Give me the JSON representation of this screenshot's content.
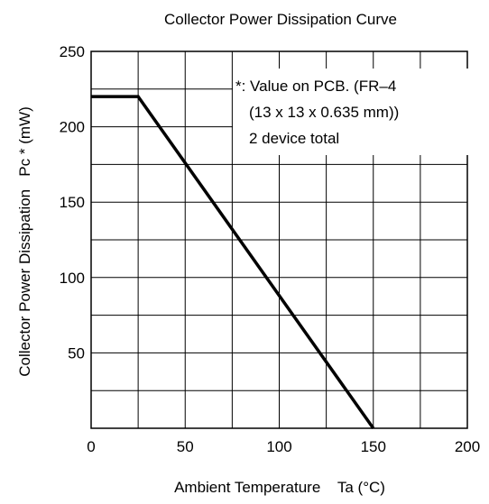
{
  "chart_data": {
    "type": "line",
    "title": "Collector Power Dissipation Curve",
    "xlabel": "Ambient Temperature    Ta (°C)",
    "ylabel": "Collector Power Dissipation   Pc * (mW)",
    "xlim": [
      0,
      200
    ],
    "ylim": [
      0,
      250
    ],
    "x_ticks": [
      0,
      50,
      100,
      150,
      200
    ],
    "y_ticks": [
      50,
      100,
      150,
      200,
      250
    ],
    "x_tick_labels": [
      "0",
      "50",
      "100",
      "150",
      "200"
    ],
    "y_tick_labels": [
      "50",
      "100",
      "150",
      "200",
      "250"
    ],
    "x_grid_step": 25,
    "y_grid_step": 25,
    "grid": true,
    "series": [
      {
        "x": [
          0,
          25,
          150
        ],
        "y": [
          220,
          220,
          0
        ]
      }
    ],
    "annotation": {
      "lines": [
        "*: Value on PCB. (FR–4",
        "(13 x 13 x 0.635 mm))",
        "2 device total"
      ],
      "position": "top-right"
    },
    "colors": {
      "line": "#000000",
      "grid": "#000000",
      "background": "#ffffff"
    }
  }
}
